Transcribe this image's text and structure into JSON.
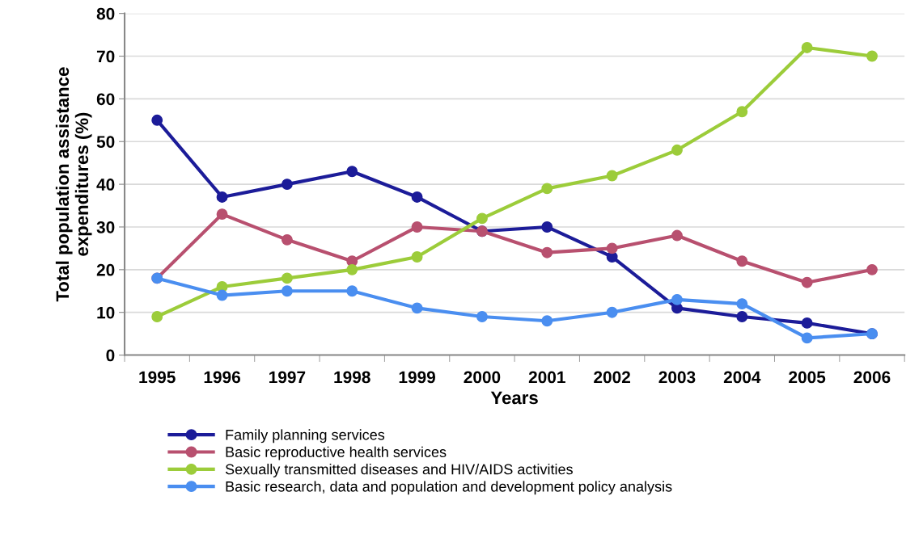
{
  "chart_data": {
    "type": "line",
    "xlabel": "Years",
    "ylabel": "Total population assistance\nexpenditures (%)",
    "categories": [
      "1995",
      "1996",
      "1997",
      "1998",
      "1999",
      "2000",
      "2001",
      "2002",
      "2003",
      "2004",
      "2005",
      "2006"
    ],
    "series": [
      {
        "name": "Family planning services",
        "color": "#1c1c99",
        "values": [
          55,
          37,
          40,
          43,
          37,
          29,
          30,
          23,
          11,
          9,
          7.5,
          5
        ]
      },
      {
        "name": "Basic reproductive health services",
        "color": "#b8506f",
        "values": [
          18,
          33,
          27,
          22,
          30,
          29,
          24,
          25,
          28,
          22,
          17,
          20
        ]
      },
      {
        "name": "Sexually transmitted diseases and HIV/AIDS activities",
        "color": "#9ccc3a",
        "values": [
          9,
          16,
          18,
          20,
          23,
          32,
          39,
          42,
          48,
          57,
          72,
          70
        ]
      },
      {
        "name": "Basic research, data and population and development policy analysis",
        "color": "#4a8ef0",
        "values": [
          18,
          14,
          15,
          15,
          11,
          9,
          8,
          10,
          13,
          12,
          4,
          5
        ]
      }
    ],
    "ylim": [
      0,
      80
    ],
    "yticks": [
      0,
      10,
      20,
      30,
      40,
      50,
      60,
      70,
      80
    ],
    "grid": "y",
    "legend": "bottom",
    "marker": "circle",
    "line_style": "solid"
  }
}
